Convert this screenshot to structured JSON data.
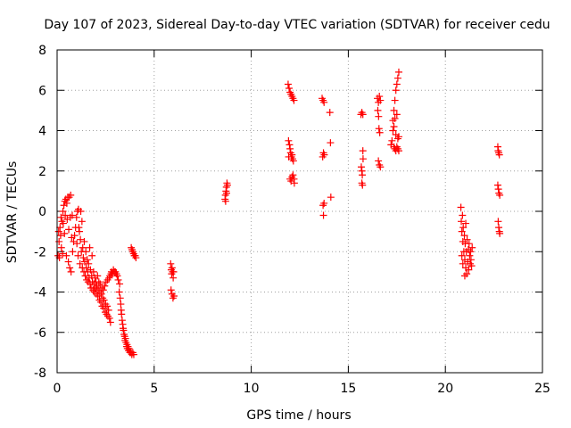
{
  "chart_data": {
    "type": "scatter",
    "title": "Day 107 of 2023, Sidereal Day-to-day VTEC variation (SDTVAR) for receiver cedu",
    "xlabel": "GPS time / hours",
    "ylabel": "SDTVAR / TECUs",
    "xlim": [
      0,
      25
    ],
    "ylim": [
      -8,
      8
    ],
    "xticks": [
      0,
      5,
      10,
      15,
      20,
      25
    ],
    "yticks": [
      -8,
      -6,
      -4,
      -2,
      0,
      2,
      4,
      6,
      8
    ],
    "xtick_labels": [
      "0",
      "5",
      "10",
      "15",
      "20",
      "25"
    ],
    "ytick_labels": [
      "-8",
      "-6",
      "-4",
      "-2",
      "0",
      "2",
      "4",
      "6",
      "8"
    ],
    "grid": true,
    "marker": "plus",
    "color": "#ff0000",
    "series": [
      {
        "name": "SDTVAR",
        "points": [
          [
            0.05,
            -2.2
          ],
          [
            0.08,
            -1.0
          ],
          [
            0.1,
            -1.5
          ],
          [
            0.12,
            -2.3
          ],
          [
            0.15,
            -0.8
          ],
          [
            0.18,
            -1.2
          ],
          [
            0.2,
            -0.3
          ],
          [
            0.22,
            -1.8
          ],
          [
            0.25,
            -0.5
          ],
          [
            0.28,
            -2.1
          ],
          [
            0.3,
            0.0
          ],
          [
            0.32,
            -0.6
          ],
          [
            0.35,
            0.3
          ],
          [
            0.38,
            -1.1
          ],
          [
            0.4,
            0.5
          ],
          [
            0.42,
            -0.2
          ],
          [
            0.45,
            0.6
          ],
          [
            0.48,
            -2.2
          ],
          [
            0.5,
            0.4
          ],
          [
            0.52,
            -0.4
          ],
          [
            0.55,
            0.7
          ],
          [
            0.58,
            -2.5
          ],
          [
            0.6,
            -0.9
          ],
          [
            0.62,
            0.7
          ],
          [
            0.65,
            -2.8
          ],
          [
            0.68,
            -0.3
          ],
          [
            0.7,
            0.8
          ],
          [
            0.72,
            -3.0
          ],
          [
            0.75,
            -1.3
          ],
          [
            0.78,
            -0.2
          ],
          [
            0.8,
            -2.0
          ],
          [
            0.85,
            -1.5
          ],
          [
            0.9,
            -1.2
          ],
          [
            0.95,
            -0.8
          ],
          [
            1.0,
            -0.3
          ],
          [
            1.02,
            -1.6
          ],
          [
            1.05,
            0.0
          ],
          [
            1.08,
            -2.2
          ],
          [
            1.1,
            0.1
          ],
          [
            1.12,
            -0.8
          ],
          [
            1.15,
            -1.0
          ],
          [
            1.18,
            -2.6
          ],
          [
            1.2,
            -1.4
          ],
          [
            1.22,
            0.0
          ],
          [
            1.25,
            -2.0
          ],
          [
            1.28,
            -0.5
          ],
          [
            1.3,
            -2.8
          ],
          [
            1.32,
            -1.8
          ],
          [
            1.35,
            -2.3
          ],
          [
            1.38,
            -3.0
          ],
          [
            1.4,
            -1.5
          ],
          [
            1.42,
            -2.5
          ],
          [
            1.45,
            -3.2
          ],
          [
            1.48,
            -2.0
          ],
          [
            1.5,
            -2.8
          ],
          [
            1.52,
            -3.4
          ],
          [
            1.55,
            -2.4
          ],
          [
            1.58,
            -3.0
          ],
          [
            1.6,
            -3.5
          ],
          [
            1.62,
            -2.6
          ],
          [
            1.65,
            -3.3
          ],
          [
            1.68,
            -1.8
          ],
          [
            1.7,
            -3.6
          ],
          [
            1.72,
            -2.9
          ],
          [
            1.75,
            -3.8
          ],
          [
            1.78,
            -3.2
          ],
          [
            1.8,
            -2.2
          ],
          [
            1.82,
            -3.5
          ],
          [
            1.85,
            -3.9
          ],
          [
            1.88,
            -3.0
          ],
          [
            1.9,
            -3.6
          ],
          [
            1.92,
            -4.0
          ],
          [
            1.95,
            -3.3
          ],
          [
            1.98,
            -3.8
          ],
          [
            2.0,
            -3.5
          ],
          [
            2.02,
            -4.1
          ],
          [
            2.05,
            -3.7
          ],
          [
            2.08,
            -3.2
          ],
          [
            2.1,
            -4.2
          ],
          [
            2.12,
            -3.9
          ],
          [
            2.15,
            -3.5
          ],
          [
            2.18,
            -4.4
          ],
          [
            2.2,
            -4.0
          ],
          [
            2.22,
            -3.6
          ],
          [
            2.25,
            -4.5
          ],
          [
            2.28,
            -4.1
          ],
          [
            2.3,
            -3.8
          ],
          [
            2.32,
            -4.7
          ],
          [
            2.35,
            -4.3
          ],
          [
            2.38,
            -3.9
          ],
          [
            2.4,
            -4.8
          ],
          [
            2.42,
            -4.4
          ],
          [
            2.45,
            -3.7
          ],
          [
            2.48,
            -5.0
          ],
          [
            2.5,
            -4.6
          ],
          [
            2.52,
            -3.5
          ],
          [
            2.55,
            -5.1
          ],
          [
            2.58,
            -4.7
          ],
          [
            2.6,
            -3.4
          ],
          [
            2.62,
            -5.2
          ],
          [
            2.65,
            -4.9
          ],
          [
            2.68,
            -3.3
          ],
          [
            2.7,
            -5.3
          ],
          [
            2.72,
            -3.2
          ],
          [
            2.75,
            -5.5
          ],
          [
            2.78,
            -3.1
          ],
          [
            2.8,
            -3.0
          ],
          [
            2.85,
            -3.1
          ],
          [
            2.9,
            -2.9
          ],
          [
            2.95,
            -3.0
          ],
          [
            3.0,
            -3.0
          ],
          [
            3.05,
            -3.1
          ],
          [
            3.1,
            -3.2
          ],
          [
            3.15,
            -3.4
          ],
          [
            3.2,
            -4.0
          ],
          [
            3.22,
            -3.6
          ],
          [
            3.25,
            -4.3
          ],
          [
            3.28,
            -4.6
          ],
          [
            3.3,
            -4.9
          ],
          [
            3.32,
            -5.1
          ],
          [
            3.35,
            -5.4
          ],
          [
            3.38,
            -5.6
          ],
          [
            3.4,
            -5.8
          ],
          [
            3.42,
            -5.9
          ],
          [
            3.45,
            -6.1
          ],
          [
            3.48,
            -6.2
          ],
          [
            3.5,
            -6.4
          ],
          [
            3.52,
            -6.3
          ],
          [
            3.55,
            -6.5
          ],
          [
            3.58,
            -6.7
          ],
          [
            3.6,
            -6.6
          ],
          [
            3.62,
            -6.8
          ],
          [
            3.65,
            -6.7
          ],
          [
            3.68,
            -6.9
          ],
          [
            3.7,
            -6.8
          ],
          [
            3.75,
            -7.0
          ],
          [
            3.8,
            -7.0
          ],
          [
            3.85,
            -7.1
          ],
          [
            3.9,
            -7.0
          ],
          [
            3.95,
            -7.1
          ],
          [
            3.82,
            -1.8
          ],
          [
            3.86,
            -1.9
          ],
          [
            3.9,
            -2.0
          ],
          [
            3.94,
            -2.1
          ],
          [
            3.98,
            -2.2
          ],
          [
            4.02,
            -2.2
          ],
          [
            4.06,
            -2.3
          ],
          [
            5.85,
            -2.6
          ],
          [
            5.88,
            -2.9
          ],
          [
            5.9,
            -3.1
          ],
          [
            5.92,
            -2.8
          ],
          [
            5.95,
            -3.0
          ],
          [
            5.98,
            -3.3
          ],
          [
            6.0,
            -3.0
          ],
          [
            5.87,
            -3.9
          ],
          [
            5.92,
            -4.1
          ],
          [
            5.97,
            -4.3
          ],
          [
            6.02,
            -4.2
          ],
          [
            8.65,
            0.6
          ],
          [
            8.67,
            0.8
          ],
          [
            8.7,
            1.0
          ],
          [
            8.72,
            1.2
          ],
          [
            8.75,
            1.4
          ],
          [
            8.68,
            0.5
          ],
          [
            8.73,
            0.9
          ],
          [
            8.77,
            1.3
          ],
          [
            11.9,
            6.3
          ],
          [
            11.95,
            6.1
          ],
          [
            12.0,
            5.9
          ],
          [
            12.05,
            5.8
          ],
          [
            12.1,
            5.7
          ],
          [
            12.15,
            5.6
          ],
          [
            12.2,
            5.5
          ],
          [
            11.92,
            3.5
          ],
          [
            11.97,
            3.3
          ],
          [
            12.0,
            3.1
          ],
          [
            12.03,
            2.9
          ],
          [
            12.07,
            2.7
          ],
          [
            12.1,
            2.8
          ],
          [
            12.13,
            2.6
          ],
          [
            12.17,
            2.5
          ],
          [
            11.93,
            2.7
          ],
          [
            12.0,
            1.6
          ],
          [
            12.05,
            1.5
          ],
          [
            12.1,
            1.7
          ],
          [
            12.15,
            1.8
          ],
          [
            12.2,
            1.6
          ],
          [
            12.22,
            1.4
          ],
          [
            13.65,
            5.6
          ],
          [
            13.7,
            5.5
          ],
          [
            13.75,
            5.4
          ],
          [
            13.68,
            2.7
          ],
          [
            13.72,
            2.9
          ],
          [
            13.76,
            2.8
          ],
          [
            13.7,
            0.3
          ],
          [
            13.72,
            -0.2
          ],
          [
            13.75,
            0.4
          ],
          [
            14.05,
            4.9
          ],
          [
            14.08,
            3.4
          ],
          [
            14.1,
            0.7
          ],
          [
            15.65,
            4.8
          ],
          [
            15.7,
            4.9
          ],
          [
            15.75,
            4.8
          ],
          [
            15.67,
            2.2
          ],
          [
            15.7,
            2.0
          ],
          [
            15.72,
            1.8
          ],
          [
            15.7,
            1.4
          ],
          [
            15.73,
            1.3
          ],
          [
            15.76,
            2.6
          ],
          [
            15.75,
            3.0
          ],
          [
            16.5,
            5.6
          ],
          [
            16.55,
            5.4
          ],
          [
            16.6,
            5.7
          ],
          [
            16.65,
            5.5
          ],
          [
            16.52,
            5.0
          ],
          [
            16.56,
            4.7
          ],
          [
            16.58,
            4.1
          ],
          [
            16.62,
            3.9
          ],
          [
            16.55,
            2.5
          ],
          [
            16.6,
            2.3
          ],
          [
            16.65,
            2.2
          ],
          [
            17.2,
            3.3
          ],
          [
            17.25,
            3.5
          ],
          [
            17.3,
            4.5
          ],
          [
            17.35,
            5.0
          ],
          [
            17.4,
            5.5
          ],
          [
            17.45,
            6.0
          ],
          [
            17.5,
            6.3
          ],
          [
            17.55,
            6.6
          ],
          [
            17.6,
            6.9
          ],
          [
            17.35,
            3.2
          ],
          [
            17.4,
            3.1
          ],
          [
            17.45,
            3.0
          ],
          [
            17.5,
            3.2
          ],
          [
            17.55,
            3.1
          ],
          [
            17.6,
            3.0
          ],
          [
            17.3,
            4.0
          ],
          [
            17.35,
            4.2
          ],
          [
            17.4,
            4.6
          ],
          [
            17.45,
            3.8
          ],
          [
            17.5,
            4.8
          ],
          [
            17.55,
            3.6
          ],
          [
            17.6,
            3.7
          ],
          [
            20.8,
            0.2
          ],
          [
            20.82,
            -0.5
          ],
          [
            20.85,
            -1.0
          ],
          [
            20.88,
            -0.2
          ],
          [
            20.9,
            -1.5
          ],
          [
            20.92,
            -0.8
          ],
          [
            20.95,
            -2.0
          ],
          [
            20.98,
            -1.2
          ],
          [
            21.0,
            -2.4
          ],
          [
            21.02,
            -1.6
          ],
          [
            21.05,
            -2.8
          ],
          [
            21.08,
            -2.0
          ],
          [
            21.1,
            -3.1
          ],
          [
            21.12,
            -1.4
          ],
          [
            21.15,
            -2.5
          ],
          [
            21.18,
            -1.9
          ],
          [
            21.2,
            -2.9
          ],
          [
            21.22,
            -1.6
          ],
          [
            21.25,
            -2.2
          ],
          [
            21.28,
            -2.6
          ],
          [
            21.3,
            -2.0
          ],
          [
            21.32,
            -2.4
          ],
          [
            21.35,
            -2.7
          ],
          [
            21.38,
            -1.8
          ],
          [
            20.85,
            -2.2
          ],
          [
            20.9,
            -2.6
          ],
          [
            21.0,
            -3.2
          ],
          [
            21.05,
            -0.6
          ],
          [
            22.7,
            3.2
          ],
          [
            22.72,
            3.0
          ],
          [
            22.75,
            2.9
          ],
          [
            22.78,
            2.8
          ],
          [
            22.7,
            1.3
          ],
          [
            22.73,
            1.1
          ],
          [
            22.76,
            0.9
          ],
          [
            22.8,
            0.8
          ],
          [
            22.72,
            -0.5
          ],
          [
            22.75,
            -0.8
          ],
          [
            22.78,
            -1.0
          ],
          [
            22.8,
            -1.1
          ]
        ]
      }
    ]
  }
}
